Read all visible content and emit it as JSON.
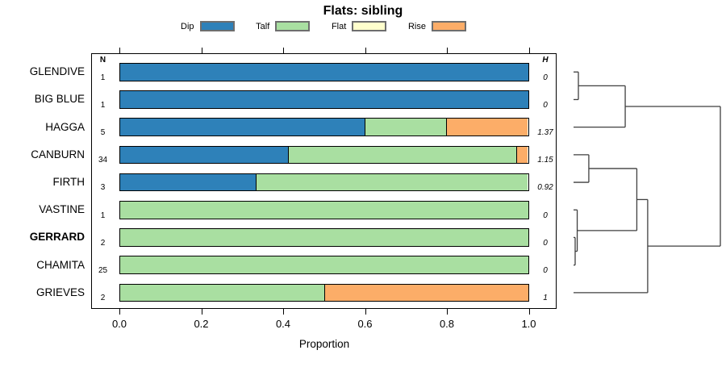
{
  "title": "Flats: sibling",
  "legend": {
    "items": [
      {
        "label": "Dip",
        "color": "#2e81b9"
      },
      {
        "label": "Talf",
        "color": "#a9dfa1"
      },
      {
        "label": "Flat",
        "color": "#ffffcc"
      },
      {
        "label": "Rise",
        "color": "#fcad68"
      }
    ]
  },
  "columns": {
    "n_header": "N",
    "h_header": "H"
  },
  "chart_data": {
    "type": "bar",
    "orientation": "horizontal",
    "stacked": true,
    "title": "Flats: sibling",
    "xlabel": "Proportion",
    "xlim": [
      0,
      1
    ],
    "grid": false,
    "x_ticks": [
      {
        "label": "0.0",
        "value": 0.0
      },
      {
        "label": "0.2",
        "value": 0.2
      },
      {
        "label": "0.4",
        "value": 0.4
      },
      {
        "label": "0.6",
        "value": 0.6
      },
      {
        "label": "0.8",
        "value": 0.8
      },
      {
        "label": "1.0",
        "value": 1.0
      }
    ],
    "series_names": [
      "Dip",
      "Talf",
      "Flat",
      "Rise"
    ],
    "rows": [
      {
        "label": "GLENDIVE",
        "n": "1",
        "h": "0",
        "bold": false,
        "segments": [
          {
            "category": "Dip",
            "value": 1.0
          }
        ]
      },
      {
        "label": "BIG BLUE",
        "n": "1",
        "h": "0",
        "bold": false,
        "segments": [
          {
            "category": "Dip",
            "value": 1.0
          }
        ]
      },
      {
        "label": "HAGGA",
        "n": "5",
        "h": "1.37",
        "bold": false,
        "segments": [
          {
            "category": "Dip",
            "value": 0.6
          },
          {
            "category": "Talf",
            "value": 0.2
          },
          {
            "category": "Rise",
            "value": 0.2
          }
        ]
      },
      {
        "label": "CANBURN",
        "n": "34",
        "h": "1.15",
        "bold": false,
        "segments": [
          {
            "category": "Dip",
            "value": 0.412
          },
          {
            "category": "Talf",
            "value": 0.559
          },
          {
            "category": "Rise",
            "value": 0.029
          }
        ]
      },
      {
        "label": "FIRTH",
        "n": "3",
        "h": "0.92",
        "bold": false,
        "segments": [
          {
            "category": "Dip",
            "value": 0.333
          },
          {
            "category": "Talf",
            "value": 0.667
          }
        ]
      },
      {
        "label": "VASTINE",
        "n": "1",
        "h": "0",
        "bold": false,
        "segments": [
          {
            "category": "Talf",
            "value": 1.0
          }
        ]
      },
      {
        "label": "GERRARD",
        "n": "2",
        "h": "0",
        "bold": true,
        "segments": [
          {
            "category": "Talf",
            "value": 1.0
          }
        ]
      },
      {
        "label": "CHAMITA",
        "n": "25",
        "h": "0",
        "bold": false,
        "segments": [
          {
            "category": "Talf",
            "value": 1.0
          }
        ]
      },
      {
        "label": "GRIEVES",
        "n": "2",
        "h": "1",
        "bold": false,
        "segments": [
          {
            "category": "Talf",
            "value": 0.5
          },
          {
            "category": "Rise",
            "value": 0.5
          }
        ]
      }
    ],
    "dendrogram": {
      "leaves": [
        "GLENDIVE",
        "BIG BLUE",
        "HAGGA",
        "CANBURN",
        "FIRTH",
        "VASTINE",
        "GERRARD",
        "CHAMITA",
        "GRIEVES"
      ],
      "merges": [
        {
          "id": "m1",
          "a": "GLENDIVE",
          "b": "BIG BLUE",
          "height": 0.033
        },
        {
          "id": "m2",
          "a": "m1",
          "b": "HAGGA",
          "height": 0.352
        },
        {
          "id": "m3",
          "a": "CANBURN",
          "b": "FIRTH",
          "height": 0.104
        },
        {
          "id": "m4",
          "a": "GERRARD",
          "b": "CHAMITA",
          "height": 0.011
        },
        {
          "id": "m5",
          "a": "VASTINE",
          "b": "m4",
          "height": 0.025
        },
        {
          "id": "m6",
          "a": "m3",
          "b": "m5",
          "height": 0.431
        },
        {
          "id": "m7",
          "a": "m6",
          "b": "GRIEVES",
          "height": 0.505
        },
        {
          "id": "m8",
          "a": "m2",
          "b": "m7",
          "height": 1.0
        }
      ]
    }
  }
}
